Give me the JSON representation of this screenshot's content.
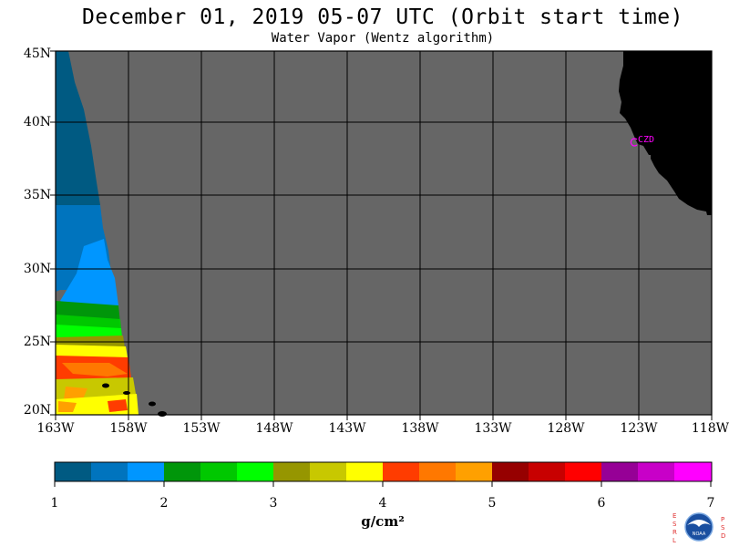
{
  "title": "December 01, 2019  05-07 UTC  (Orbit start time)",
  "subtitle": "Water Vapor (Wentz algorithm)",
  "lat_labels": [
    "45N",
    "40N",
    "35N",
    "30N",
    "25N",
    "20N"
  ],
  "lon_labels": [
    "163W",
    "158W",
    "153W",
    "148W",
    "143W",
    "138W",
    "133W",
    "128W",
    "123W",
    "118W"
  ],
  "station_label": "CZD",
  "colorbar": {
    "labels": [
      "1",
      "2",
      "3",
      "4",
      "5",
      "6",
      "7"
    ],
    "unit": "g/cm²",
    "colors": [
      "#005a82",
      "#0074be",
      "#0096ff",
      "#00960a",
      "#00c800",
      "#00ff00",
      "#969600",
      "#c8c800",
      "#ffff00",
      "#ff3c00",
      "#ff7800",
      "#ffa000",
      "#960000",
      "#c80000",
      "#ff0000",
      "#960096",
      "#c800c8",
      "#ff00ff"
    ]
  },
  "colors": {
    "no_data": "#666666",
    "land": "#000000",
    "grid": "#000000",
    "station": "#ff00ff"
  },
  "logo": {
    "left_letters": "ESRL",
    "right_letters": "PSD",
    "center_text": "NOAA"
  }
}
